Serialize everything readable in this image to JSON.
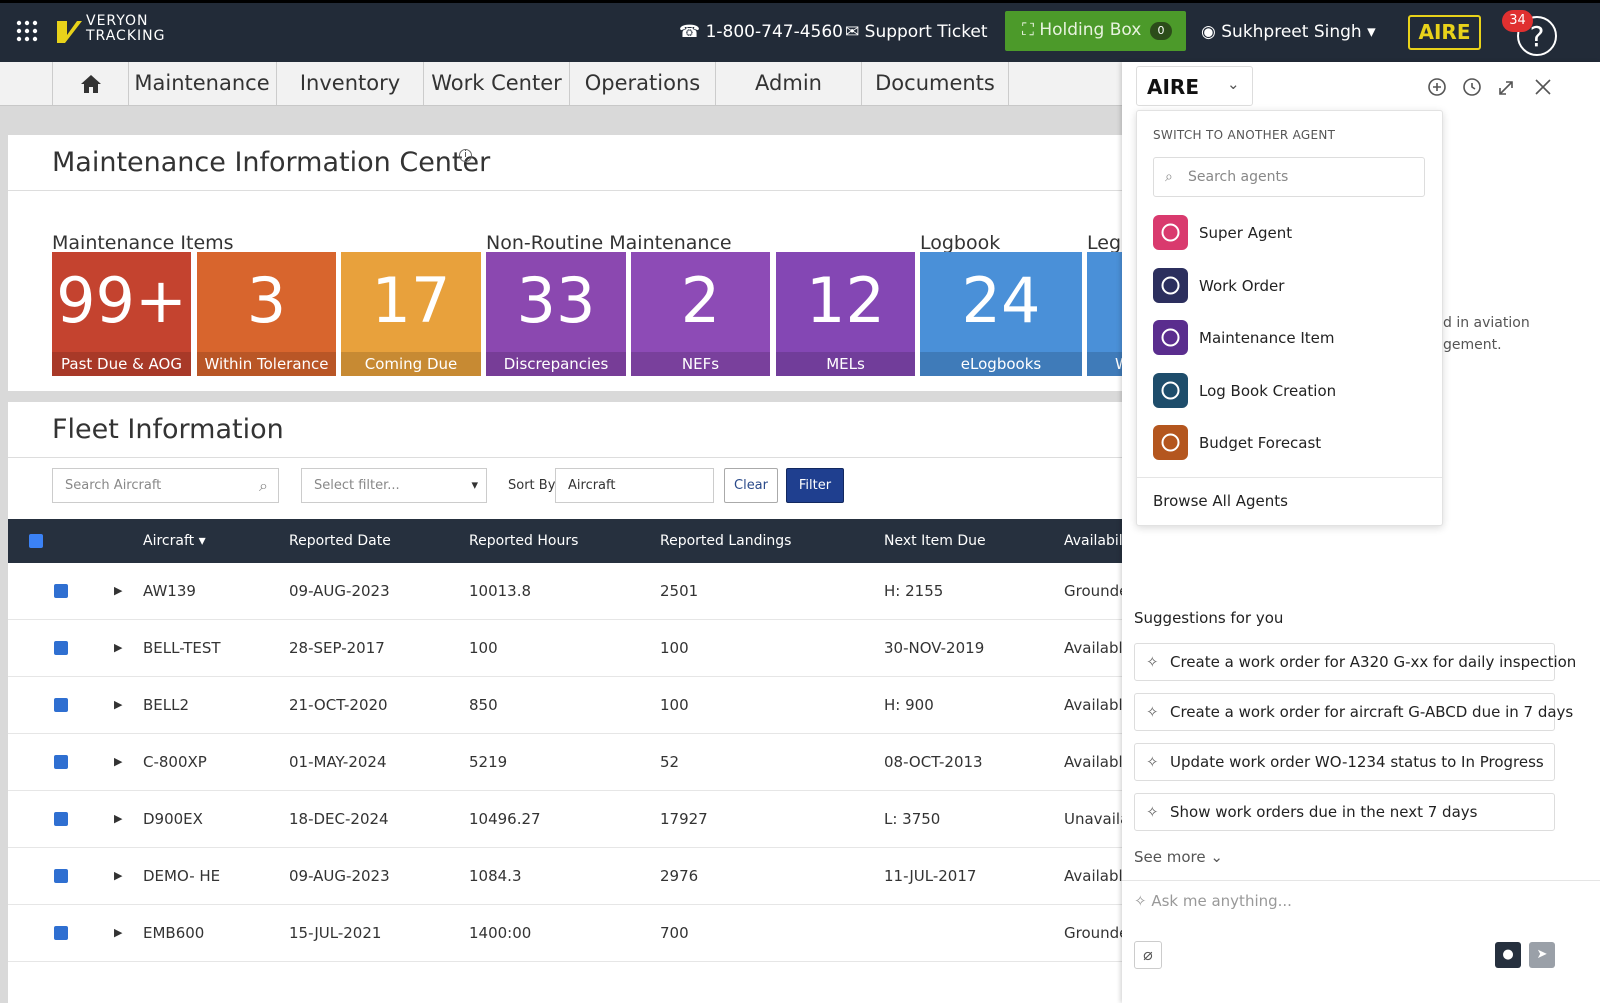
{
  "header": {
    "logo_top": "VERYON",
    "logo_bottom": "TRACKING",
    "phone": "1-800-747-4560",
    "support": "Support Ticket",
    "holding_box": "Holding Box",
    "holding_count": "0",
    "user": "Sukhpreet Singh",
    "aire": "AIRE",
    "notifications": "34"
  },
  "nav": [
    "Maintenance",
    "Inventory",
    "Work Center",
    "Operations",
    "Admin",
    "Documents"
  ],
  "info_center": {
    "title": "Maintenance Information Center",
    "groups": [
      "Maintenance Items",
      "Non-Routine Maintenance",
      "Logbook",
      "Lega"
    ],
    "tiles": [
      {
        "value": "99+",
        "label": "Past Due & AOG",
        "color": "#c4432f"
      },
      {
        "value": "3",
        "label": "Within Tolerance",
        "color": "#d8652d"
      },
      {
        "value": "17",
        "label": "Coming Due",
        "color": "#e8a13c"
      },
      {
        "value": "33",
        "label": "Discrepancies",
        "color": "#8b48b0"
      },
      {
        "value": "2",
        "label": "NEFs",
        "color": "#8d4bb6"
      },
      {
        "value": "12",
        "label": "MELs",
        "color": "#8447b4"
      },
      {
        "value": "24",
        "label": "eLogbooks",
        "color": "#4a90d8"
      },
      {
        "value": null,
        "label": "W",
        "color": "#4a90d8"
      }
    ]
  },
  "fleet": {
    "title": "Fleet Information",
    "search_placeholder": "Search Aircraft",
    "filter_placeholder": "Select filter...",
    "sort_label": "Sort By",
    "sort_value": "Aircraft",
    "clear": "Clear",
    "filter": "Filter",
    "columns": [
      "Aircraft",
      "Reported Date",
      "Reported Hours",
      "Reported Landings",
      "Next Item Due",
      "Availability"
    ],
    "rows": [
      [
        "AW139",
        "09-AUG-2023",
        "10013.8",
        "2501",
        "H: 2155",
        "Grounded"
      ],
      [
        "BELL-TEST",
        "28-SEP-2017",
        "100",
        "100",
        "30-NOV-2019",
        "Available"
      ],
      [
        "BELL2",
        "21-OCT-2020",
        "850",
        "100",
        "H: 900",
        "Available"
      ],
      [
        "C-800XP",
        "01-MAY-2024",
        "5219",
        "52",
        "08-OCT-2013",
        "Available"
      ],
      [
        "D900EX",
        "18-DEC-2024",
        "10496.27",
        "17927",
        "L: 3750",
        "Unavailable"
      ],
      [
        "DEMO- HE",
        "09-AUG-2023",
        "1084.3",
        "2976",
        "11-JUL-2017",
        "Available"
      ],
      [
        "EMB600",
        "15-JUL-2021",
        "1400:00",
        "700",
        null,
        "Grounded"
      ]
    ]
  },
  "assistant": {
    "brand": "AIRE",
    "switch_title": "SWITCH TO ANOTHER AGENT",
    "search_placeholder": "Search agents",
    "agents": [
      {
        "name": "Super Agent",
        "color": "#d93a6e"
      },
      {
        "name": "Work Order",
        "color": "#2c2f5e"
      },
      {
        "name": "Maintenance Item",
        "color": "#5a2d8e"
      },
      {
        "name": "Log Book Creation",
        "color": "#1e4d6b"
      },
      {
        "name": "Budget Forecast",
        "color": "#b4561e"
      }
    ],
    "browse_all": "Browse All Agents",
    "background_text": [
      "d in aviation",
      "gement."
    ],
    "suggestions_title": "Suggestions for you",
    "suggestions": [
      "Create a work order for A320 G-xx for daily inspection",
      "Create a work order for aircraft G-ABCD due in 7 days",
      "Update work order WO-1234 status to In Progress",
      "Show work orders due in the next 7 days"
    ],
    "see_more": "See more",
    "input_placeholder": "Ask me anything..."
  }
}
